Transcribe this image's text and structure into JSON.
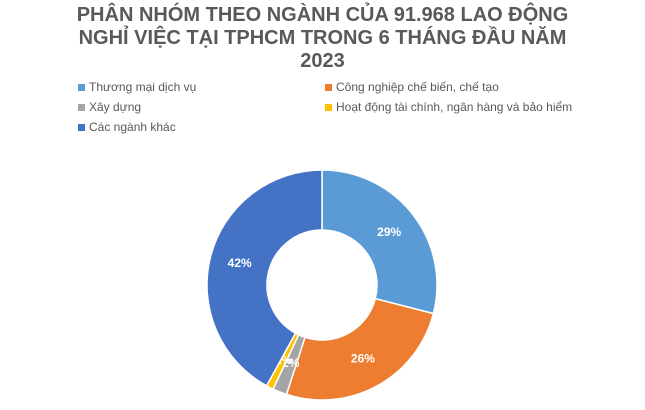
{
  "chart_data": {
    "type": "doughnut",
    "title": "PHÂN NHÓM THEO NGÀNH CỦA 91.968 LAO ĐỘNG NGHỈ VIỆC TẠI TPHCM TRONG 6 THÁNG ĐẦU NĂM 2023",
    "categories": [
      "Thương mại dịch vụ",
      "Công nghiệp chế biến, chế tạo",
      "Xây dựng",
      "Hoạt động tài chính,  ngân hàng và bảo hiểm",
      "Các ngành khác"
    ],
    "values": [
      29,
      26,
      2,
      1,
      42
    ],
    "value_labels": [
      "29%",
      "26%",
      "2%",
      "1%",
      "42%"
    ],
    "colors": [
      "#5b9bd5",
      "#ed7d31",
      "#a5a5a5",
      "#ffc000",
      "#4472c4"
    ]
  }
}
